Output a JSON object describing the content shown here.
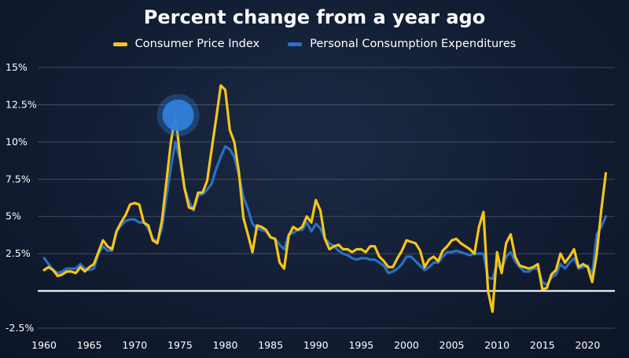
{
  "chart_data": {
    "type": "line",
    "title": "Percent change from a year ago",
    "xlabel": "",
    "ylabel": "",
    "xlim": [
      1959.3,
      2023
    ],
    "ylim": [
      -2.5,
      15
    ],
    "y_ticks": [
      -2.5,
      2.5,
      5,
      7.5,
      10,
      12.5,
      15
    ],
    "y_tick_labels": [
      "-2.5%",
      "2.5%",
      "5%",
      "7.5%",
      "10%",
      "12.5%",
      "15%"
    ],
    "x_ticks": [
      1960,
      1965,
      1970,
      1975,
      1980,
      1985,
      1990,
      1995,
      2000,
      2005,
      2010,
      2015,
      2020
    ],
    "x_tick_labels": [
      "1960",
      "1965",
      "1970",
      "1975",
      "1980",
      "1985",
      "1990",
      "1995",
      "2000",
      "2005",
      "2010",
      "2015",
      "2020"
    ],
    "grid": true,
    "zero_line": true,
    "legend_position": "top-center",
    "highlight_marker": {
      "x": 1974.8,
      "y": 11.8,
      "color": "#2f7fd8"
    },
    "series": [
      {
        "name": "Consumer Price Index",
        "color": "#f5c518",
        "x": [
          1960,
          1960.5,
          1961,
          1961.5,
          1962,
          1962.5,
          1963,
          1963.5,
          1964,
          1964.5,
          1965,
          1965.5,
          1966,
          1966.5,
          1967,
          1967.5,
          1968,
          1968.5,
          1969,
          1969.5,
          1970,
          1970.5,
          1971,
          1971.5,
          1972,
          1972.5,
          1973,
          1973.5,
          1974,
          1974.5,
          1975,
          1975.5,
          1976,
          1976.5,
          1977,
          1977.5,
          1978,
          1978.5,
          1979,
          1979.5,
          1980,
          1980.5,
          1981,
          1981.5,
          1982,
          1982.5,
          1983,
          1983.5,
          1984,
          1984.5,
          1985,
          1985.5,
          1986,
          1986.5,
          1987,
          1987.5,
          1988,
          1988.5,
          1989,
          1989.5,
          1990,
          1990.5,
          1991,
          1991.5,
          1992,
          1992.5,
          1993,
          1993.5,
          1994,
          1994.5,
          1995,
          1995.5,
          1996,
          1996.5,
          1997,
          1997.5,
          1998,
          1998.5,
          1999,
          1999.5,
          2000,
          2000.5,
          2001,
          2001.5,
          2002,
          2002.5,
          2003,
          2003.5,
          2004,
          2004.5,
          2005,
          2005.5,
          2006,
          2006.5,
          2007,
          2007.5,
          2008,
          2008.5,
          2009,
          2009.5,
          2010,
          2010.5,
          2011,
          2011.5,
          2012,
          2012.5,
          2013,
          2013.5,
          2014,
          2014.5,
          2015,
          2015.5,
          2016,
          2016.5,
          2017,
          2017.5,
          2018,
          2018.5,
          2019,
          2019.5,
          2020,
          2020.5,
          2021,
          2021.5,
          2022
        ],
        "values": [
          1.4,
          1.6,
          1.4,
          1.0,
          1.1,
          1.3,
          1.3,
          1.2,
          1.6,
          1.3,
          1.6,
          1.8,
          2.6,
          3.4,
          3.0,
          2.8,
          4.0,
          4.6,
          5.1,
          5.8,
          5.9,
          5.8,
          4.6,
          4.4,
          3.4,
          3.2,
          4.7,
          7.3,
          10.0,
          11.8,
          9.1,
          6.9,
          5.6,
          5.5,
          6.6,
          6.6,
          7.4,
          9.5,
          11.6,
          13.8,
          13.5,
          10.8,
          10.0,
          8.0,
          4.9,
          3.8,
          2.6,
          4.4,
          4.3,
          4.1,
          3.6,
          3.5,
          1.9,
          1.5,
          3.7,
          4.3,
          4.1,
          4.3,
          5.0,
          4.6,
          6.1,
          5.4,
          3.5,
          2.8,
          3.0,
          3.1,
          2.8,
          2.8,
          2.6,
          2.8,
          2.8,
          2.6,
          3.0,
          3.0,
          2.3,
          2.0,
          1.6,
          1.6,
          2.2,
          2.7,
          3.4,
          3.3,
          3.2,
          2.7,
          1.6,
          2.1,
          2.3,
          2.0,
          2.7,
          3.0,
          3.4,
          3.5,
          3.2,
          3.0,
          2.8,
          2.5,
          4.3,
          5.3,
          0.0,
          -1.4,
          2.6,
          1.2,
          3.2,
          3.8,
          2.3,
          1.7,
          1.6,
          1.5,
          1.6,
          1.8,
          0.1,
          0.2,
          1.1,
          1.4,
          2.5,
          1.9,
          2.3,
          2.8,
          1.6,
          1.8,
          1.6,
          0.6,
          2.5,
          5.4,
          7.9
        ]
      },
      {
        "name": "Personal Consumption Expenditures",
        "color": "#2a6fc4",
        "x": [
          1960,
          1960.5,
          1961,
          1961.5,
          1962,
          1962.5,
          1963,
          1963.5,
          1964,
          1964.5,
          1965,
          1965.5,
          1966,
          1966.5,
          1967,
          1967.5,
          1968,
          1968.5,
          1969,
          1969.5,
          1970,
          1970.5,
          1971,
          1971.5,
          1972,
          1972.5,
          1973,
          1973.5,
          1974,
          1974.5,
          1975,
          1975.5,
          1976,
          1976.5,
          1977,
          1977.5,
          1978,
          1978.5,
          1979,
          1979.5,
          1980,
          1980.5,
          1981,
          1981.5,
          1982,
          1982.5,
          1983,
          1983.5,
          1984,
          1984.5,
          1985,
          1985.5,
          1986,
          1986.5,
          1987,
          1987.5,
          1988,
          1988.5,
          1989,
          1989.5,
          1990,
          1990.5,
          1991,
          1991.5,
          1992,
          1992.5,
          1993,
          1993.5,
          1994,
          1994.5,
          1995,
          1995.5,
          1996,
          1996.5,
          1997,
          1997.5,
          1998,
          1998.5,
          1999,
          1999.5,
          2000,
          2000.5,
          2001,
          2001.5,
          2002,
          2002.5,
          2003,
          2003.5,
          2004,
          2004.5,
          2005,
          2005.5,
          2006,
          2006.5,
          2007,
          2007.5,
          2008,
          2008.5,
          2009,
          2009.5,
          2010,
          2010.5,
          2011,
          2011.5,
          2012,
          2012.5,
          2013,
          2013.5,
          2014,
          2014.5,
          2015,
          2015.5,
          2016,
          2016.5,
          2017,
          2017.5,
          2018,
          2018.5,
          2019,
          2019.5,
          2020,
          2020.5,
          2021,
          2021.5,
          2022
        ],
        "values": [
          2.2,
          1.8,
          1.4,
          1.2,
          1.3,
          1.5,
          1.5,
          1.5,
          1.8,
          1.5,
          1.4,
          1.5,
          2.5,
          3.0,
          2.7,
          2.7,
          4.0,
          4.4,
          4.7,
          4.8,
          4.8,
          4.6,
          4.6,
          4.2,
          3.5,
          3.3,
          4.2,
          6.3,
          8.3,
          10.0,
          8.8,
          6.9,
          6.0,
          5.4,
          6.4,
          6.5,
          6.8,
          7.2,
          8.2,
          9.0,
          9.7,
          9.5,
          9.0,
          7.8,
          6.3,
          5.5,
          4.5,
          4.2,
          4.1,
          4.0,
          3.6,
          3.5,
          3.1,
          2.8,
          3.8,
          3.9,
          4.1,
          4.1,
          4.6,
          4.0,
          4.5,
          4.2,
          3.5,
          3.2,
          3.0,
          2.7,
          2.5,
          2.4,
          2.2,
          2.1,
          2.2,
          2.2,
          2.1,
          2.1,
          1.9,
          1.7,
          1.2,
          1.3,
          1.5,
          1.8,
          2.3,
          2.3,
          2.0,
          1.7,
          1.4,
          1.6,
          1.9,
          1.9,
          2.3,
          2.6,
          2.6,
          2.7,
          2.6,
          2.5,
          2.4,
          2.5,
          2.5,
          2.5,
          0.9,
          0.8,
          1.8,
          1.4,
          2.3,
          2.6,
          2.0,
          1.6,
          1.3,
          1.3,
          1.5,
          1.5,
          0.6,
          0.4,
          0.9,
          1.1,
          1.8,
          1.5,
          1.9,
          2.2,
          1.5,
          1.6,
          1.7,
          1.1,
          3.8,
          4.3,
          5.0
        ]
      }
    ]
  }
}
